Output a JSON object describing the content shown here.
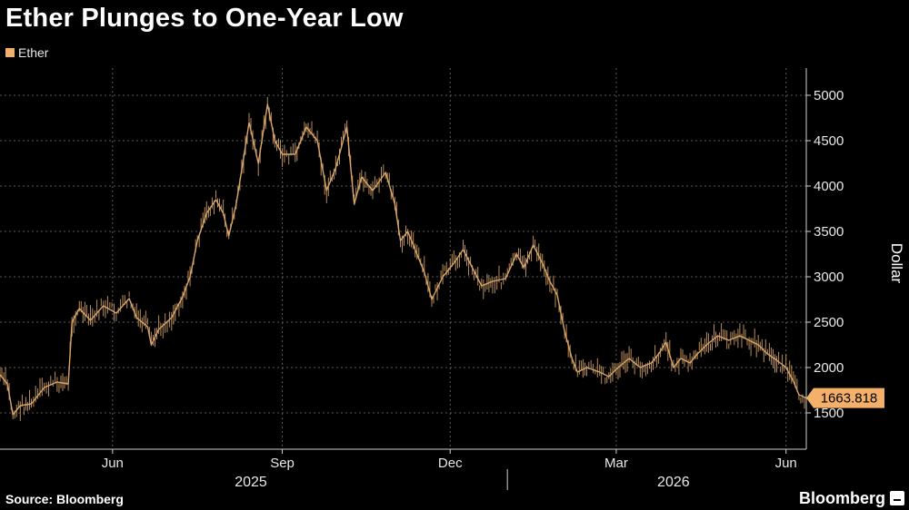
{
  "title": "Ether Plunges to One-Year Low",
  "legend": {
    "label": "Ether",
    "color": "#f2b06a"
  },
  "source": "Source: Bloomberg",
  "brand": "Bloomberg",
  "colors": {
    "background": "#000000",
    "series": "#d9a66a",
    "tag": "#f2b06a",
    "grid": "#5a5a5a"
  },
  "chart_data": {
    "type": "line",
    "title": "Ether Plunges to One-Year Low",
    "ylabel": "Dollar",
    "ylim": [
      1100,
      5300
    ],
    "yticks": [
      1500,
      2000,
      2500,
      3000,
      3500,
      4000,
      4500,
      5000
    ],
    "xlim": [
      "2025-04-01",
      "2026-06-12"
    ],
    "month_ticks": [
      {
        "date": "2025-06-01",
        "label": "Jun"
      },
      {
        "date": "2025-09-01",
        "label": "Sep"
      },
      {
        "date": "2025-12-01",
        "label": "Dec"
      },
      {
        "date": "2026-03-01",
        "label": "Mar"
      },
      {
        "date": "2026-06-01",
        "label": "Jun"
      }
    ],
    "year_labels": [
      {
        "label": "2025",
        "date": "2025-08-15"
      },
      {
        "label": "2026",
        "date": "2026-04-01"
      }
    ],
    "year_divider": "2026-01-01",
    "last_value_label": "1663.818",
    "series": [
      {
        "name": "Ether",
        "color": "#d9a66a",
        "points": [
          [
            "2025-04-01",
            1920
          ],
          [
            "2025-04-05",
            1820
          ],
          [
            "2025-04-08",
            1480
          ],
          [
            "2025-04-12",
            1580
          ],
          [
            "2025-04-18",
            1600
          ],
          [
            "2025-04-25",
            1780
          ],
          [
            "2025-05-02",
            1840
          ],
          [
            "2025-05-08",
            1820
          ],
          [
            "2025-05-10",
            2500
          ],
          [
            "2025-05-14",
            2650
          ],
          [
            "2025-05-20",
            2520
          ],
          [
            "2025-05-27",
            2680
          ],
          [
            "2025-06-03",
            2600
          ],
          [
            "2025-06-10",
            2760
          ],
          [
            "2025-06-14",
            2550
          ],
          [
            "2025-06-20",
            2450
          ],
          [
            "2025-06-22",
            2250
          ],
          [
            "2025-06-26",
            2420
          ],
          [
            "2025-07-03",
            2550
          ],
          [
            "2025-07-09",
            2780
          ],
          [
            "2025-07-13",
            3000
          ],
          [
            "2025-07-17",
            3400
          ],
          [
            "2025-07-22",
            3700
          ],
          [
            "2025-07-27",
            3850
          ],
          [
            "2025-07-31",
            3700
          ],
          [
            "2025-08-03",
            3450
          ],
          [
            "2025-08-07",
            3800
          ],
          [
            "2025-08-11",
            4300
          ],
          [
            "2025-08-14",
            4700
          ],
          [
            "2025-08-19",
            4250
          ],
          [
            "2025-08-24",
            4900
          ],
          [
            "2025-08-28",
            4500
          ],
          [
            "2025-09-01",
            4350
          ],
          [
            "2025-09-08",
            4350
          ],
          [
            "2025-09-14",
            4650
          ],
          [
            "2025-09-20",
            4500
          ],
          [
            "2025-09-25",
            3950
          ],
          [
            "2025-09-30",
            4200
          ],
          [
            "2025-10-06",
            4650
          ],
          [
            "2025-10-10",
            3800
          ],
          [
            "2025-10-14",
            4100
          ],
          [
            "2025-10-20",
            3950
          ],
          [
            "2025-10-27",
            4150
          ],
          [
            "2025-11-01",
            3800
          ],
          [
            "2025-11-04",
            3400
          ],
          [
            "2025-11-08",
            3500
          ],
          [
            "2025-11-13",
            3250
          ],
          [
            "2025-11-17",
            3050
          ],
          [
            "2025-11-21",
            2750
          ],
          [
            "2025-11-27",
            3000
          ],
          [
            "2025-12-03",
            3150
          ],
          [
            "2025-12-08",
            3300
          ],
          [
            "2025-12-13",
            3100
          ],
          [
            "2025-12-18",
            2900
          ],
          [
            "2025-12-24",
            2950
          ],
          [
            "2025-12-31",
            2980
          ],
          [
            "2026-01-06",
            3250
          ],
          [
            "2026-01-10",
            3100
          ],
          [
            "2026-01-15",
            3350
          ],
          [
            "2026-01-20",
            3150
          ],
          [
            "2026-01-24",
            2950
          ],
          [
            "2026-01-28",
            2800
          ],
          [
            "2026-02-01",
            2400
          ],
          [
            "2026-02-05",
            2100
          ],
          [
            "2026-02-08",
            1950
          ],
          [
            "2026-02-13",
            2000
          ],
          [
            "2026-02-20",
            1950
          ],
          [
            "2026-02-25",
            1900
          ],
          [
            "2026-03-02",
            2000
          ],
          [
            "2026-03-08",
            2100
          ],
          [
            "2026-03-14",
            2000
          ],
          [
            "2026-03-20",
            2050
          ],
          [
            "2026-03-24",
            2150
          ],
          [
            "2026-03-28",
            2280
          ],
          [
            "2026-04-01",
            2000
          ],
          [
            "2026-04-05",
            2100
          ],
          [
            "2026-04-10",
            2050
          ],
          [
            "2026-04-14",
            2150
          ],
          [
            "2026-04-19",
            2250
          ],
          [
            "2026-04-25",
            2350
          ],
          [
            "2026-05-01",
            2300
          ],
          [
            "2026-05-07",
            2350
          ],
          [
            "2026-05-12",
            2300
          ],
          [
            "2026-05-17",
            2250
          ],
          [
            "2026-05-22",
            2150
          ],
          [
            "2026-05-27",
            2080
          ],
          [
            "2026-06-01",
            2000
          ],
          [
            "2026-06-05",
            1850
          ],
          [
            "2026-06-08",
            1700
          ],
          [
            "2026-06-12",
            1664
          ]
        ]
      }
    ]
  }
}
